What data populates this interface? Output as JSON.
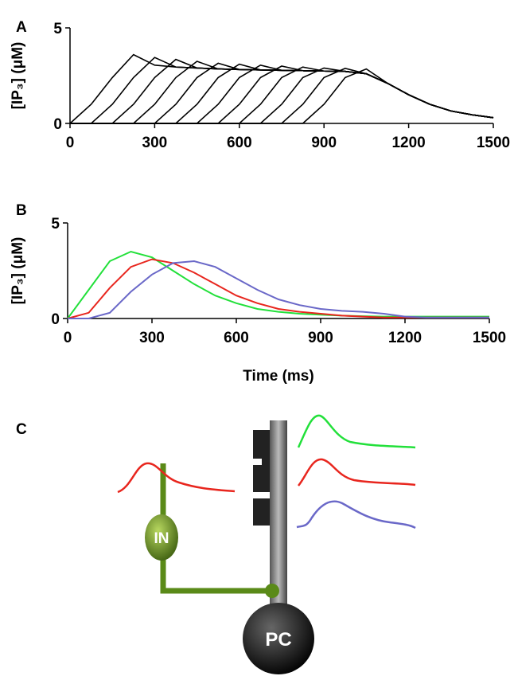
{
  "chart_data": [
    {
      "type": "line",
      "panel_label": "A",
      "ylabel": "[IP₃] (μM)",
      "x": [
        0,
        75,
        150,
        225,
        300,
        375,
        450,
        525,
        600,
        675,
        750,
        825,
        900,
        975,
        1050,
        1125,
        1200,
        1275,
        1350,
        1425,
        1500
      ],
      "xlim": [
        0,
        1500
      ],
      "xticks": [
        0,
        300,
        600,
        900,
        1200,
        1500
      ],
      "ylim": [
        0,
        5
      ],
      "yticks": [
        0,
        5
      ],
      "series": [
        {
          "color": "#000000",
          "values": [
            0,
            1.0,
            2.4,
            3.6,
            3.05,
            2.95,
            2.9,
            2.85,
            2.82,
            2.8,
            2.78,
            2.76,
            2.74,
            2.72,
            2.6,
            2.1,
            1.5,
            1.0,
            0.65,
            0.45,
            0.3
          ]
        },
        {
          "color": "#000000",
          "values": [
            0,
            0,
            1.0,
            2.4,
            3.45,
            2.95,
            2.9,
            2.85,
            2.82,
            2.8,
            2.78,
            2.76,
            2.74,
            2.72,
            2.6,
            2.1,
            1.5,
            1.0,
            0.65,
            0.45,
            0.3
          ]
        },
        {
          "color": "#000000",
          "values": [
            0,
            0,
            0,
            1.0,
            2.4,
            3.35,
            2.9,
            2.85,
            2.82,
            2.8,
            2.78,
            2.76,
            2.74,
            2.72,
            2.6,
            2.1,
            1.5,
            1.0,
            0.65,
            0.45,
            0.3
          ]
        },
        {
          "color": "#000000",
          "values": [
            0,
            0,
            0,
            0,
            1.0,
            2.4,
            3.25,
            2.85,
            2.82,
            2.8,
            2.78,
            2.76,
            2.74,
            2.72,
            2.6,
            2.1,
            1.5,
            1.0,
            0.65,
            0.45,
            0.3
          ]
        },
        {
          "color": "#000000",
          "values": [
            0,
            0,
            0,
            0,
            0,
            1.0,
            2.4,
            3.15,
            2.82,
            2.8,
            2.78,
            2.76,
            2.74,
            2.72,
            2.6,
            2.1,
            1.5,
            1.0,
            0.65,
            0.45,
            0.3
          ]
        },
        {
          "color": "#000000",
          "values": [
            0,
            0,
            0,
            0,
            0,
            0,
            1.0,
            2.4,
            3.1,
            2.8,
            2.78,
            2.76,
            2.74,
            2.72,
            2.6,
            2.1,
            1.5,
            1.0,
            0.65,
            0.45,
            0.3
          ]
        },
        {
          "color": "#000000",
          "values": [
            0,
            0,
            0,
            0,
            0,
            0,
            0,
            1.0,
            2.4,
            3.05,
            2.78,
            2.76,
            2.74,
            2.72,
            2.6,
            2.1,
            1.5,
            1.0,
            0.65,
            0.45,
            0.3
          ]
        },
        {
          "color": "#000000",
          "values": [
            0,
            0,
            0,
            0,
            0,
            0,
            0,
            0,
            1.0,
            2.4,
            3.0,
            2.76,
            2.74,
            2.72,
            2.6,
            2.1,
            1.5,
            1.0,
            0.65,
            0.45,
            0.3
          ]
        },
        {
          "color": "#000000",
          "values": [
            0,
            0,
            0,
            0,
            0,
            0,
            0,
            0,
            0,
            1.0,
            2.4,
            2.95,
            2.74,
            2.72,
            2.6,
            2.1,
            1.5,
            1.0,
            0.65,
            0.45,
            0.3
          ]
        },
        {
          "color": "#000000",
          "values": [
            0,
            0,
            0,
            0,
            0,
            0,
            0,
            0,
            0,
            0,
            1.0,
            2.4,
            2.9,
            2.72,
            2.6,
            2.1,
            1.5,
            1.0,
            0.65,
            0.45,
            0.3
          ]
        },
        {
          "color": "#000000",
          "values": [
            0,
            0,
            0,
            0,
            0,
            0,
            0,
            0,
            0,
            0,
            0,
            1.0,
            2.4,
            2.88,
            2.6,
            2.1,
            1.5,
            1.0,
            0.65,
            0.45,
            0.3
          ]
        },
        {
          "color": "#000000",
          "values": [
            0,
            0,
            0,
            0,
            0,
            0,
            0,
            0,
            0,
            0,
            0,
            0,
            1.0,
            2.4,
            2.85,
            2.1,
            1.5,
            1.0,
            0.65,
            0.45,
            0.3
          ]
        }
      ]
    },
    {
      "type": "line",
      "panel_label": "B",
      "ylabel": "[IP₃] (μM)",
      "xlabel": "Time (ms)",
      "x": [
        0,
        75,
        150,
        225,
        300,
        375,
        450,
        525,
        600,
        675,
        750,
        825,
        900,
        975,
        1050,
        1125,
        1200,
        1275,
        1350,
        1425,
        1500
      ],
      "xlim": [
        0,
        1500
      ],
      "xticks": [
        0,
        300,
        600,
        900,
        1200,
        1500
      ],
      "ylim": [
        0,
        5
      ],
      "yticks": [
        0,
        5
      ],
      "series": [
        {
          "color": "#22e03a",
          "values": [
            0,
            1.5,
            3.0,
            3.5,
            3.2,
            2.5,
            1.8,
            1.2,
            0.8,
            0.5,
            0.35,
            0.25,
            0.2,
            0.15,
            0.12,
            0.1,
            0.1,
            0.1,
            0.1,
            0.1,
            0.1
          ]
        },
        {
          "color": "#e8261e",
          "values": [
            0,
            0.3,
            1.6,
            2.7,
            3.1,
            2.9,
            2.4,
            1.8,
            1.2,
            0.8,
            0.5,
            0.35,
            0.25,
            0.15,
            0.1,
            0.05,
            0.05,
            0.05,
            0.05,
            0.05,
            0.05
          ]
        },
        {
          "color": "#6a68c8",
          "values": [
            0,
            0,
            0.3,
            1.4,
            2.3,
            2.9,
            3.0,
            2.7,
            2.1,
            1.5,
            1.0,
            0.7,
            0.5,
            0.4,
            0.35,
            0.25,
            0.1,
            0.05,
            0.05,
            0.05,
            0.05
          ]
        }
      ]
    }
  ],
  "diagram": {
    "panel_label": "C",
    "interneuron": "IN",
    "purkinje": "PC"
  }
}
